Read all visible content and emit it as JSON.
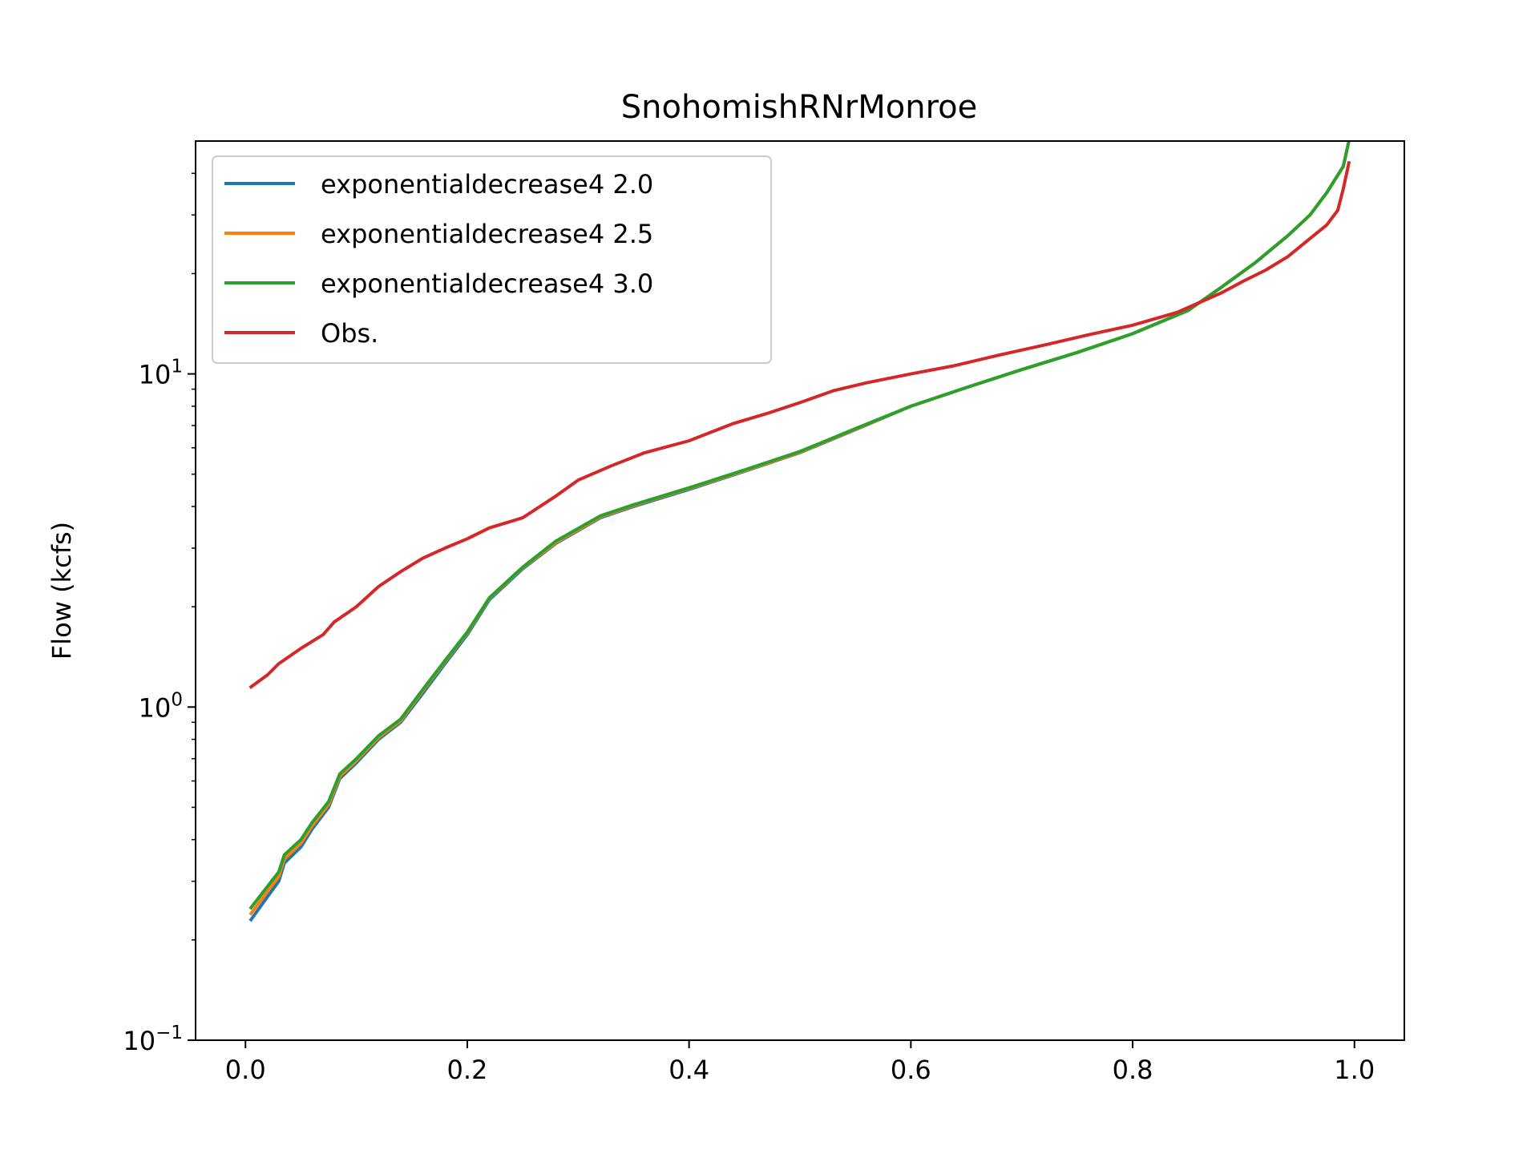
{
  "chart_data": {
    "type": "line",
    "title": "SnohomishRNrMonroe",
    "xlabel": "",
    "ylabel": "Flow (kcfs)",
    "xlim": [
      -0.045,
      1.045
    ],
    "ylim": [
      0.1,
      50
    ],
    "yscale": "log",
    "x_ticks": [
      0.0,
      0.2,
      0.4,
      0.6,
      0.8,
      1.0
    ],
    "x_tick_labels": [
      "0.0",
      "0.2",
      "0.4",
      "0.6",
      "0.8",
      "1.0"
    ],
    "y_ticks": [
      {
        "value": 0.1,
        "base": "10",
        "exp": "−1"
      },
      {
        "value": 1,
        "base": "10",
        "exp": "0"
      },
      {
        "value": 10,
        "base": "10",
        "exp": "1"
      }
    ],
    "grid": false,
    "legend_position": "top-left",
    "series": [
      {
        "name": "exponentialdecrease4 2.0",
        "color": "#1f77b4",
        "x": [
          0.005,
          0.02,
          0.03,
          0.035,
          0.05,
          0.06,
          0.075,
          0.085,
          0.1,
          0.12,
          0.14,
          0.16,
          0.18,
          0.2,
          0.22,
          0.25,
          0.28,
          0.32,
          0.35,
          0.4,
          0.45,
          0.5,
          0.55,
          0.6,
          0.65,
          0.7,
          0.75,
          0.8,
          0.85,
          0.88,
          0.91,
          0.94,
          0.96,
          0.975,
          0.99,
          0.995
        ],
        "y": [
          0.23,
          0.27,
          0.3,
          0.34,
          0.38,
          0.43,
          0.5,
          0.61,
          0.68,
          0.8,
          0.9,
          1.1,
          1.35,
          1.65,
          2.1,
          2.6,
          3.1,
          3.7,
          4.0,
          4.5,
          5.1,
          5.8,
          6.8,
          8.0,
          9.1,
          10.3,
          11.6,
          13.2,
          15.5,
          18.2,
          21.5,
          26.0,
          30.0,
          35.0,
          42.0,
          50.0
        ]
      },
      {
        "name": "exponentialdecrease4 2.5",
        "color": "#ff7f0e",
        "x": [
          0.005,
          0.02,
          0.03,
          0.035,
          0.05,
          0.06,
          0.075,
          0.085,
          0.1,
          0.12,
          0.14,
          0.16,
          0.18,
          0.2,
          0.22,
          0.25,
          0.28,
          0.32,
          0.35,
          0.4,
          0.45,
          0.5,
          0.55,
          0.6,
          0.65,
          0.7,
          0.75,
          0.8,
          0.85,
          0.88,
          0.91,
          0.94,
          0.96,
          0.975,
          0.99,
          0.995
        ],
        "y": [
          0.24,
          0.28,
          0.31,
          0.35,
          0.39,
          0.44,
          0.51,
          0.62,
          0.69,
          0.81,
          0.91,
          1.12,
          1.37,
          1.67,
          2.12,
          2.62,
          3.12,
          3.72,
          4.03,
          4.53,
          5.12,
          5.82,
          6.82,
          8.0,
          9.1,
          10.3,
          11.6,
          13.2,
          15.5,
          18.2,
          21.5,
          26.0,
          30.0,
          35.0,
          42.0,
          50.0
        ]
      },
      {
        "name": "exponentialdecrease4 3.0",
        "color": "#2ca02c",
        "x": [
          0.005,
          0.02,
          0.03,
          0.035,
          0.05,
          0.06,
          0.075,
          0.085,
          0.1,
          0.12,
          0.14,
          0.16,
          0.18,
          0.2,
          0.22,
          0.25,
          0.28,
          0.32,
          0.35,
          0.4,
          0.45,
          0.5,
          0.55,
          0.6,
          0.65,
          0.7,
          0.75,
          0.8,
          0.85,
          0.88,
          0.91,
          0.94,
          0.96,
          0.975,
          0.99,
          0.995
        ],
        "y": [
          0.25,
          0.29,
          0.32,
          0.36,
          0.4,
          0.45,
          0.52,
          0.63,
          0.7,
          0.82,
          0.92,
          1.13,
          1.38,
          1.68,
          2.13,
          2.63,
          3.15,
          3.75,
          4.05,
          4.55,
          5.15,
          5.85,
          6.85,
          8.0,
          9.1,
          10.3,
          11.6,
          13.2,
          15.5,
          18.2,
          21.5,
          26.0,
          30.0,
          35.0,
          42.0,
          50.0
        ]
      },
      {
        "name": "Obs.",
        "color": "#d62728",
        "x": [
          0.005,
          0.02,
          0.03,
          0.05,
          0.07,
          0.08,
          0.1,
          0.12,
          0.14,
          0.16,
          0.18,
          0.2,
          0.22,
          0.25,
          0.28,
          0.3,
          0.33,
          0.36,
          0.4,
          0.44,
          0.47,
          0.5,
          0.53,
          0.56,
          0.6,
          0.64,
          0.68,
          0.72,
          0.76,
          0.8,
          0.84,
          0.88,
          0.9,
          0.92,
          0.94,
          0.96,
          0.975,
          0.985,
          0.99,
          0.995
        ],
        "y": [
          1.15,
          1.25,
          1.35,
          1.5,
          1.65,
          1.8,
          2.0,
          2.3,
          2.55,
          2.8,
          3.0,
          3.2,
          3.45,
          3.7,
          4.3,
          4.8,
          5.3,
          5.8,
          6.3,
          7.1,
          7.6,
          8.2,
          8.9,
          9.4,
          10.0,
          10.6,
          11.4,
          12.2,
          13.1,
          14.0,
          15.3,
          17.5,
          19.0,
          20.5,
          22.5,
          25.5,
          28.0,
          31.0,
          36.0,
          43.0
        ]
      }
    ]
  }
}
